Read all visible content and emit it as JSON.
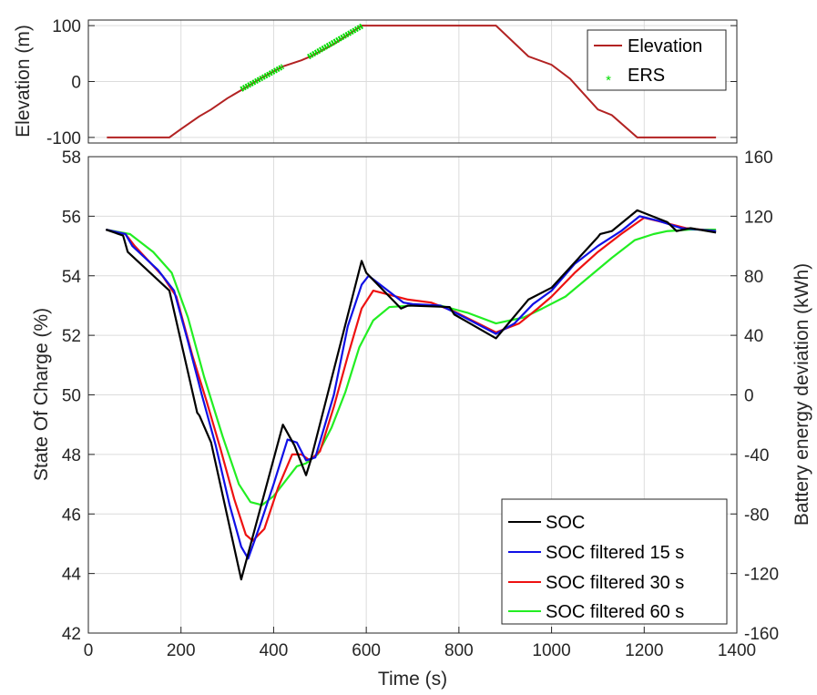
{
  "chart_data": [
    {
      "type": "line",
      "ylabel": "Elevation (m)",
      "xlim": [
        0,
        1400
      ],
      "ylim": [
        -110,
        110
      ],
      "yticks": [
        -100,
        0,
        100
      ],
      "grid": true,
      "legend_position": "top-right",
      "series": [
        {
          "name": "Elevation",
          "color": "#b22222",
          "points": [
            [
              40,
              -100
            ],
            [
              175,
              -100
            ],
            [
              200,
              -85
            ],
            [
              240,
              -62
            ],
            [
              265,
              -50
            ],
            [
              300,
              -30
            ],
            [
              335,
              -13
            ],
            [
              375,
              7
            ],
            [
              420,
              27
            ],
            [
              460,
              38
            ],
            [
              480,
              45
            ],
            [
              530,
              67
            ],
            [
              590,
              100
            ],
            [
              880,
              100
            ],
            [
              950,
              45
            ],
            [
              1000,
              30
            ],
            [
              1040,
              5
            ],
            [
              1100,
              -50
            ],
            [
              1130,
              -60
            ],
            [
              1185,
              -100
            ],
            [
              1355,
              -100
            ]
          ]
        },
        {
          "name": "ERS",
          "color": "#00dd00",
          "marker": "*",
          "segments": [
            [
              [
                330,
                -14
              ],
              [
                420,
                27
              ]
            ],
            [
              [
                475,
                44
              ],
              [
                592,
                100
              ]
            ]
          ]
        }
      ]
    },
    {
      "type": "line",
      "xlabel": "Time (s)",
      "ylabel": "State Of Charge (%)",
      "y2label": "Battery energy deviation (kWh)",
      "xlim": [
        0,
        1400
      ],
      "ylim": [
        42,
        58
      ],
      "y2lim": [
        -160,
        160
      ],
      "xticks": [
        0,
        200,
        400,
        600,
        800,
        1000,
        1200,
        1400
      ],
      "yticks": [
        42,
        44,
        46,
        48,
        50,
        52,
        54,
        56,
        58
      ],
      "y2ticks": [
        -160,
        -120,
        -80,
        -40,
        0,
        40,
        80,
        120,
        160
      ],
      "grid": true,
      "legend_position": "bottom-right",
      "series": [
        {
          "name": "SOC",
          "color": "#000000",
          "points": [
            [
              38,
              55.55
            ],
            [
              75,
              55.35
            ],
            [
              85,
              54.8
            ],
            [
              175,
              53.5
            ],
            [
              235,
              49.4
            ],
            [
              240,
              49.3
            ],
            [
              265,
              48.4
            ],
            [
              330,
              43.8
            ],
            [
              420,
              49.0
            ],
            [
              445,
              48.3
            ],
            [
              470,
              47.3
            ],
            [
              480,
              47.8
            ],
            [
              590,
              54.5
            ],
            [
              600,
              54.1
            ],
            [
              675,
              52.9
            ],
            [
              690,
              53.0
            ],
            [
              780,
              52.95
            ],
            [
              790,
              52.7
            ],
            [
              880,
              51.9
            ],
            [
              950,
              53.2
            ],
            [
              1000,
              53.6
            ],
            [
              1100,
              55.3
            ],
            [
              1105,
              55.4
            ],
            [
              1130,
              55.5
            ],
            [
              1185,
              56.2
            ],
            [
              1250,
              55.8
            ],
            [
              1270,
              55.5
            ],
            [
              1300,
              55.6
            ],
            [
              1355,
              55.45
            ]
          ]
        },
        {
          "name": "SOC filtered 15 s",
          "color": "#1010e6",
          "points": [
            [
              38,
              55.55
            ],
            [
              80,
              55.4
            ],
            [
              95,
              55.0
            ],
            [
              150,
              54.2
            ],
            [
              185,
              53.5
            ],
            [
              215,
              51.8
            ],
            [
              245,
              50.0
            ],
            [
              275,
              48.3
            ],
            [
              305,
              46.3
            ],
            [
              330,
              44.9
            ],
            [
              345,
              44.5
            ],
            [
              370,
              45.6
            ],
            [
              400,
              47.0
            ],
            [
              430,
              48.5
            ],
            [
              450,
              48.4
            ],
            [
              470,
              47.8
            ],
            [
              490,
              47.9
            ],
            [
              530,
              50.0
            ],
            [
              560,
              52.3
            ],
            [
              590,
              53.7
            ],
            [
              605,
              54.0
            ],
            [
              630,
              53.7
            ],
            [
              680,
              53.1
            ],
            [
              700,
              53.05
            ],
            [
              760,
              53.0
            ],
            [
              800,
              52.7
            ],
            [
              880,
              52.05
            ],
            [
              920,
              52.4
            ],
            [
              960,
              53.05
            ],
            [
              1000,
              53.5
            ],
            [
              1050,
              54.4
            ],
            [
              1100,
              55.0
            ],
            [
              1150,
              55.5
            ],
            [
              1190,
              56.0
            ],
            [
              1230,
              55.85
            ],
            [
              1280,
              55.6
            ],
            [
              1355,
              55.5
            ]
          ]
        },
        {
          "name": "SOC filtered 30 s",
          "color": "#ee1111",
          "points": [
            [
              38,
              55.55
            ],
            [
              80,
              55.4
            ],
            [
              100,
              55.0
            ],
            [
              160,
              54.0
            ],
            [
              190,
              53.3
            ],
            [
              225,
              51.3
            ],
            [
              255,
              49.8
            ],
            [
              285,
              48.2
            ],
            [
              315,
              46.5
            ],
            [
              340,
              45.3
            ],
            [
              355,
              45.1
            ],
            [
              380,
              45.5
            ],
            [
              410,
              46.9
            ],
            [
              440,
              48.0
            ],
            [
              460,
              48.0
            ],
            [
              478,
              47.8
            ],
            [
              500,
              48.1
            ],
            [
              530,
              49.6
            ],
            [
              560,
              51.3
            ],
            [
              590,
              52.9
            ],
            [
              615,
              53.5
            ],
            [
              640,
              53.4
            ],
            [
              690,
              53.2
            ],
            [
              740,
              53.1
            ],
            [
              790,
              52.8
            ],
            [
              880,
              52.1
            ],
            [
              930,
              52.4
            ],
            [
              970,
              52.9
            ],
            [
              1000,
              53.3
            ],
            [
              1050,
              54.1
            ],
            [
              1100,
              54.8
            ],
            [
              1150,
              55.4
            ],
            [
              1200,
              55.95
            ],
            [
              1240,
              55.8
            ],
            [
              1290,
              55.6
            ],
            [
              1355,
              55.5
            ]
          ]
        },
        {
          "name": "SOC filtered 60 s",
          "color": "#22ee22",
          "points": [
            [
              38,
              55.55
            ],
            [
              90,
              55.4
            ],
            [
              140,
              54.8
            ],
            [
              180,
              54.1
            ],
            [
              215,
              52.6
            ],
            [
              250,
              50.6
            ],
            [
              290,
              48.6
            ],
            [
              325,
              47.0
            ],
            [
              350,
              46.4
            ],
            [
              375,
              46.3
            ],
            [
              400,
              46.6
            ],
            [
              425,
              47.1
            ],
            [
              450,
              47.6
            ],
            [
              470,
              47.7
            ],
            [
              495,
              48.0
            ],
            [
              525,
              48.9
            ],
            [
              555,
              50.1
            ],
            [
              585,
              51.6
            ],
            [
              615,
              52.5
            ],
            [
              650,
              52.95
            ],
            [
              700,
              53.0
            ],
            [
              760,
              53.0
            ],
            [
              820,
              52.75
            ],
            [
              880,
              52.4
            ],
            [
              940,
              52.6
            ],
            [
              980,
              52.9
            ],
            [
              1030,
              53.3
            ],
            [
              1080,
              53.95
            ],
            [
              1130,
              54.6
            ],
            [
              1180,
              55.2
            ],
            [
              1220,
              55.4
            ],
            [
              1250,
              55.5
            ],
            [
              1300,
              55.55
            ],
            [
              1355,
              55.55
            ]
          ]
        }
      ]
    }
  ]
}
